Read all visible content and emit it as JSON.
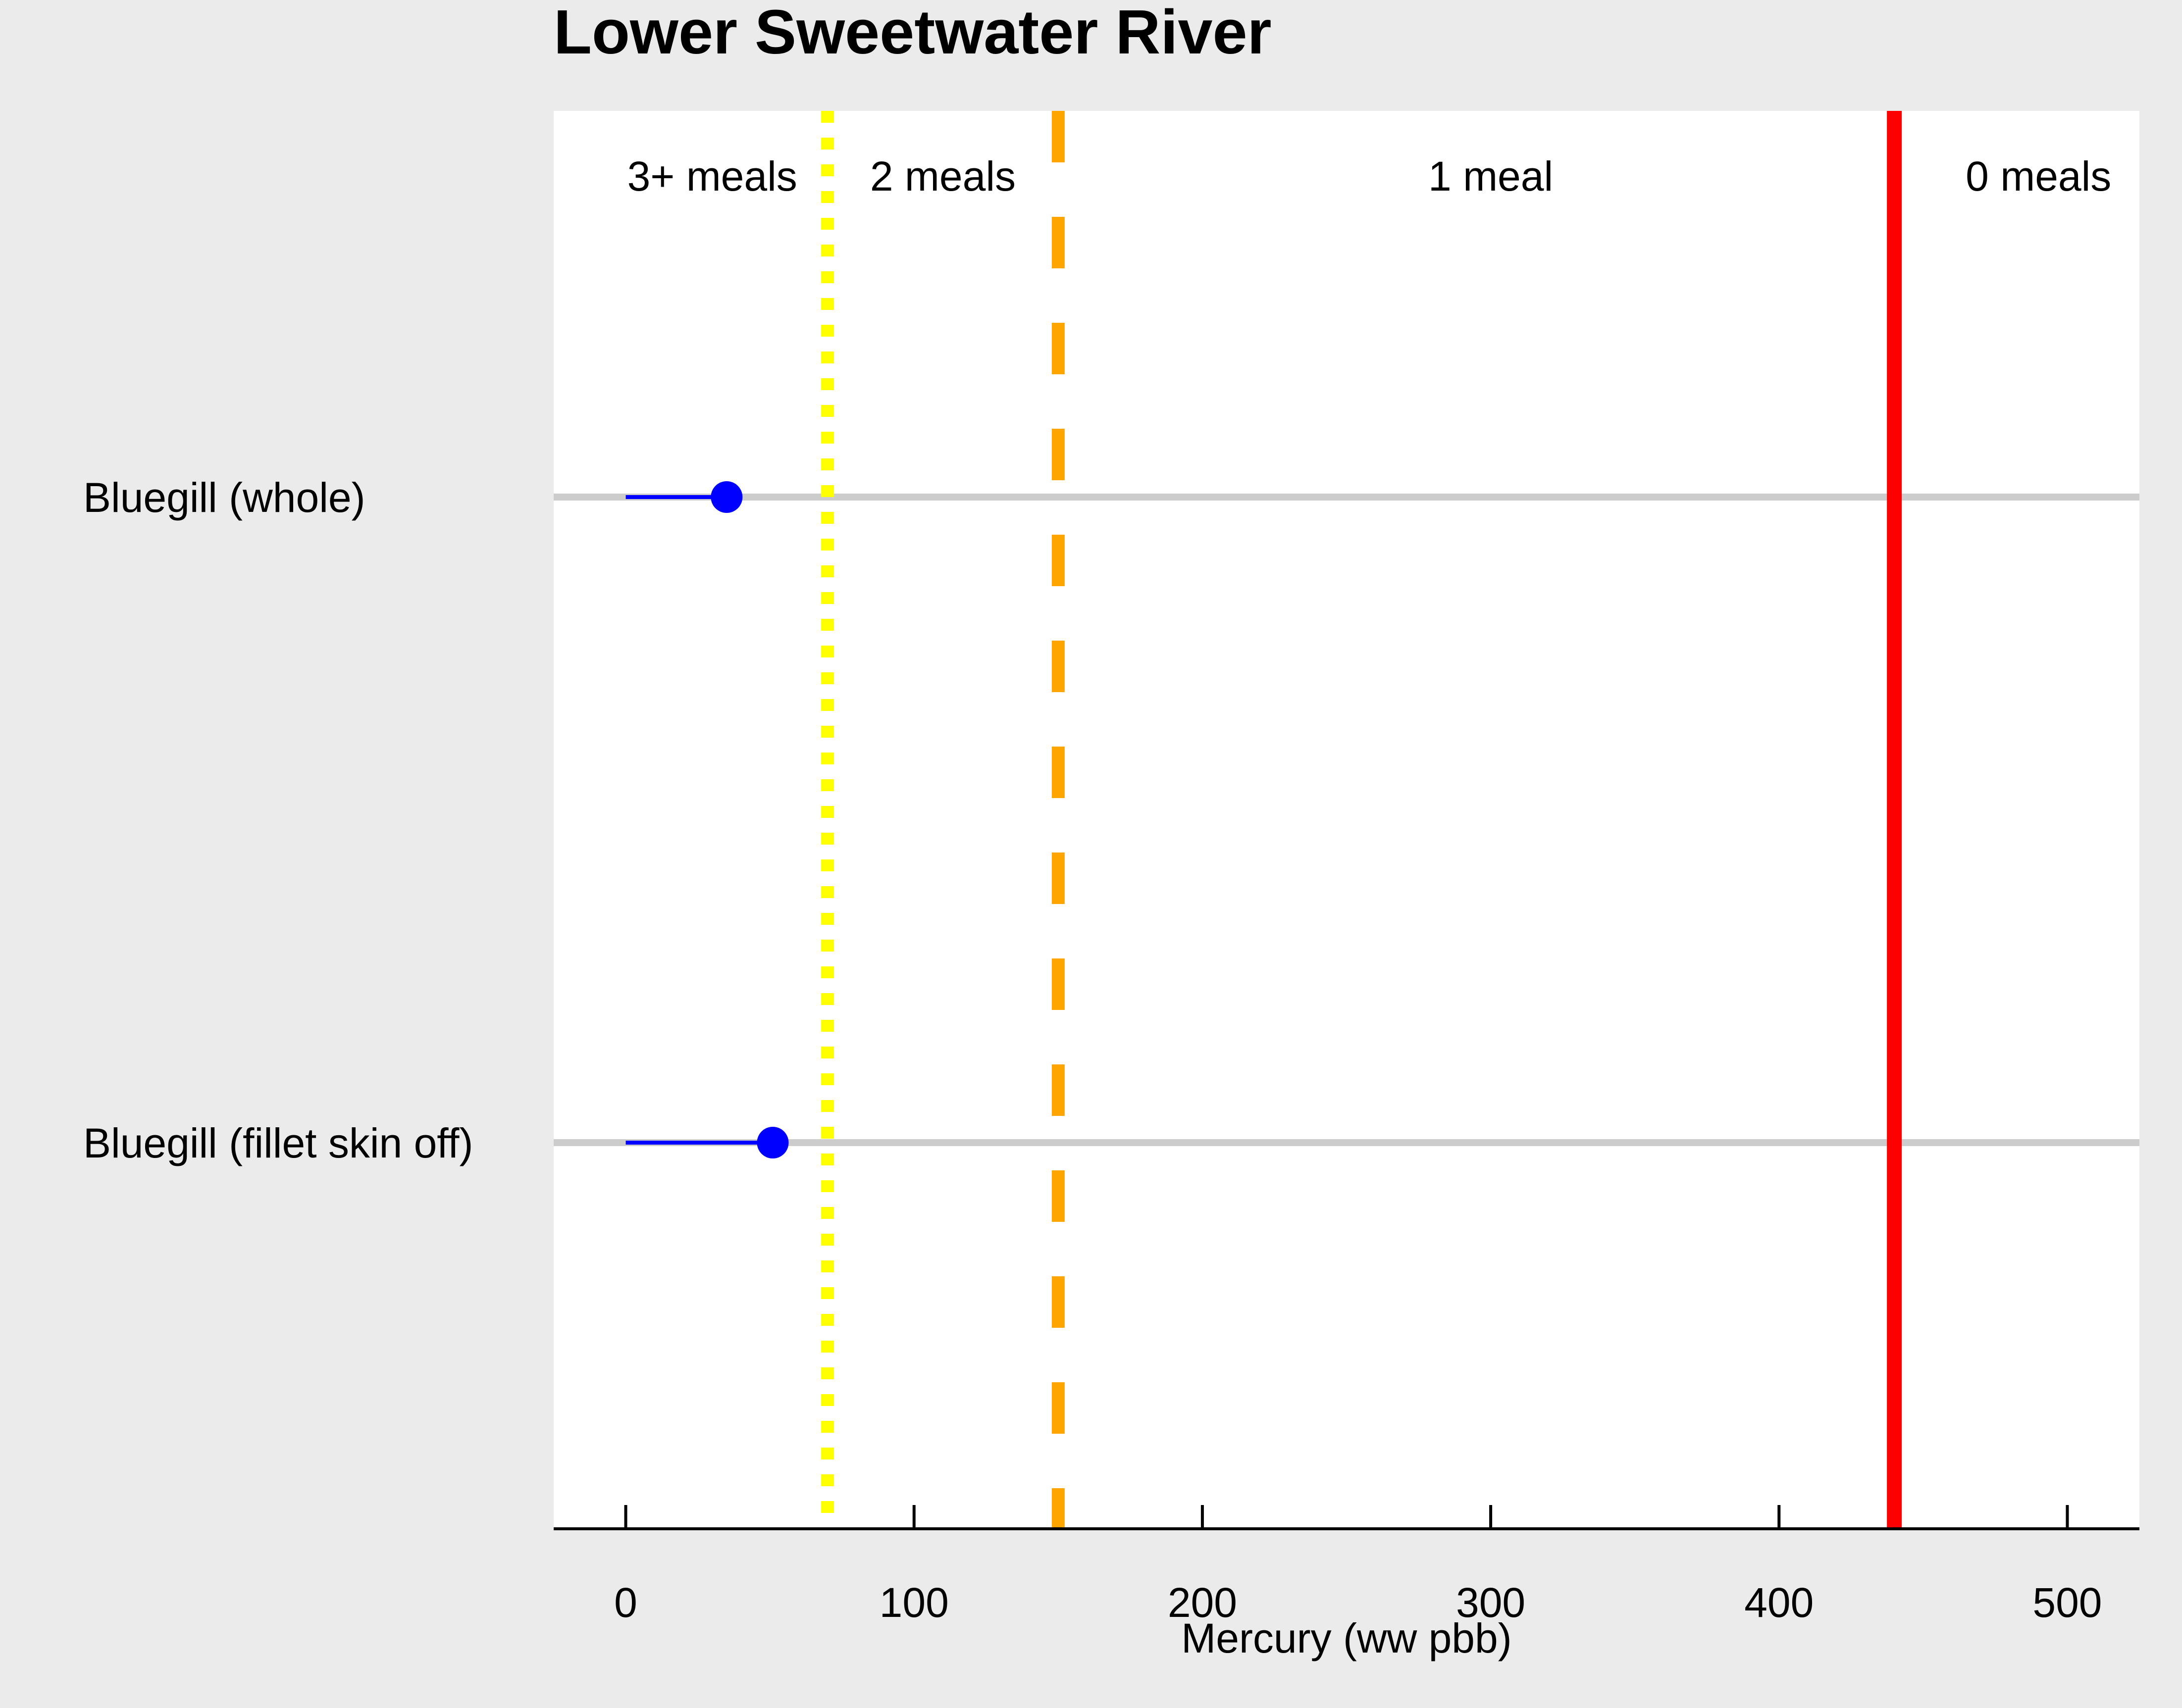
{
  "chart_data": {
    "type": "scatter",
    "title": "Lower Sweetwater River",
    "xlabel": "Mercury (ww pbb)",
    "ylabel": "",
    "xlim": [
      -25,
      525
    ],
    "xticks": [
      0,
      100,
      200,
      300,
      400,
      500
    ],
    "categories": [
      "Bluegill (whole)",
      "Bluegill (fillet skin off)"
    ],
    "points": [
      {
        "category": "Bluegill (whole)",
        "value": 35,
        "segment": [
          0,
          35
        ]
      },
      {
        "category": "Bluegill (fillet skin off)",
        "value": 51,
        "segment": [
          0,
          51
        ]
      }
    ],
    "thresholds": [
      {
        "value": 70,
        "style": "dotted",
        "color": "#ffff00"
      },
      {
        "value": 150,
        "style": "dashed",
        "color": "#ffa500"
      },
      {
        "value": 440,
        "style": "solid",
        "color": "#ff0000"
      }
    ],
    "zone_labels": [
      {
        "label": "3+ meals",
        "x": 30
      },
      {
        "label": "2 meals",
        "x": 110
      },
      {
        "label": "1 meal",
        "x": 300
      },
      {
        "label": "0 meals",
        "x": 490
      }
    ],
    "grid": "horizontal category lines",
    "legend": "none",
    "colors": {
      "point": "#0000ff",
      "gridline": "#cccccc",
      "panel": "#ffffff",
      "background": "#ebebeb"
    }
  }
}
